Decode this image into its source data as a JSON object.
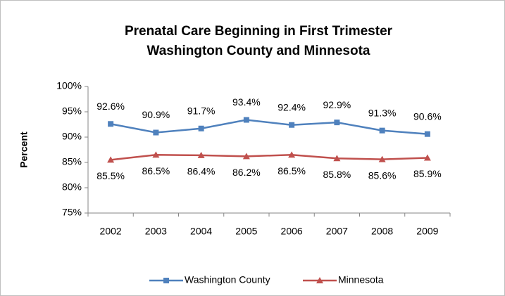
{
  "chart_data": {
    "type": "line",
    "title": [
      "Prenatal Care Beginning in First Trimester",
      "Washington County and Minnesota"
    ],
    "y_label": "Percent",
    "categories": [
      "2002",
      "2003",
      "2004",
      "2005",
      "2006",
      "2007",
      "2008",
      "2009"
    ],
    "series": [
      {
        "name": "Washington County",
        "color": "#4f81bd",
        "marker": "square",
        "values": [
          92.6,
          90.9,
          91.7,
          93.4,
          92.4,
          92.9,
          91.3,
          90.6
        ],
        "value_labels": [
          "92.6%",
          "90.9%",
          "91.7%",
          "93.4%",
          "92.4%",
          "92.9%",
          "91.3%",
          "90.6%"
        ]
      },
      {
        "name": "Minnesota",
        "color": "#c0504d",
        "marker": "triangle",
        "values": [
          85.5,
          86.5,
          86.4,
          86.2,
          86.5,
          85.8,
          85.6,
          85.9
        ],
        "value_labels": [
          "85.5%",
          "86.5%",
          "86.4%",
          "86.2%",
          "86.5%",
          "85.8%",
          "85.6%",
          "85.9%"
        ]
      }
    ],
    "ylim": [
      75,
      100
    ],
    "yticks": [
      {
        "value": 75,
        "label": "75%"
      },
      {
        "value": 80,
        "label": "80%"
      },
      {
        "value": 85,
        "label": "85%"
      },
      {
        "value": 90,
        "label": "90%"
      },
      {
        "value": 95,
        "label": "95%"
      },
      {
        "value": 100,
        "label": "100%"
      }
    ],
    "grid": false,
    "legend": "bottom"
  }
}
